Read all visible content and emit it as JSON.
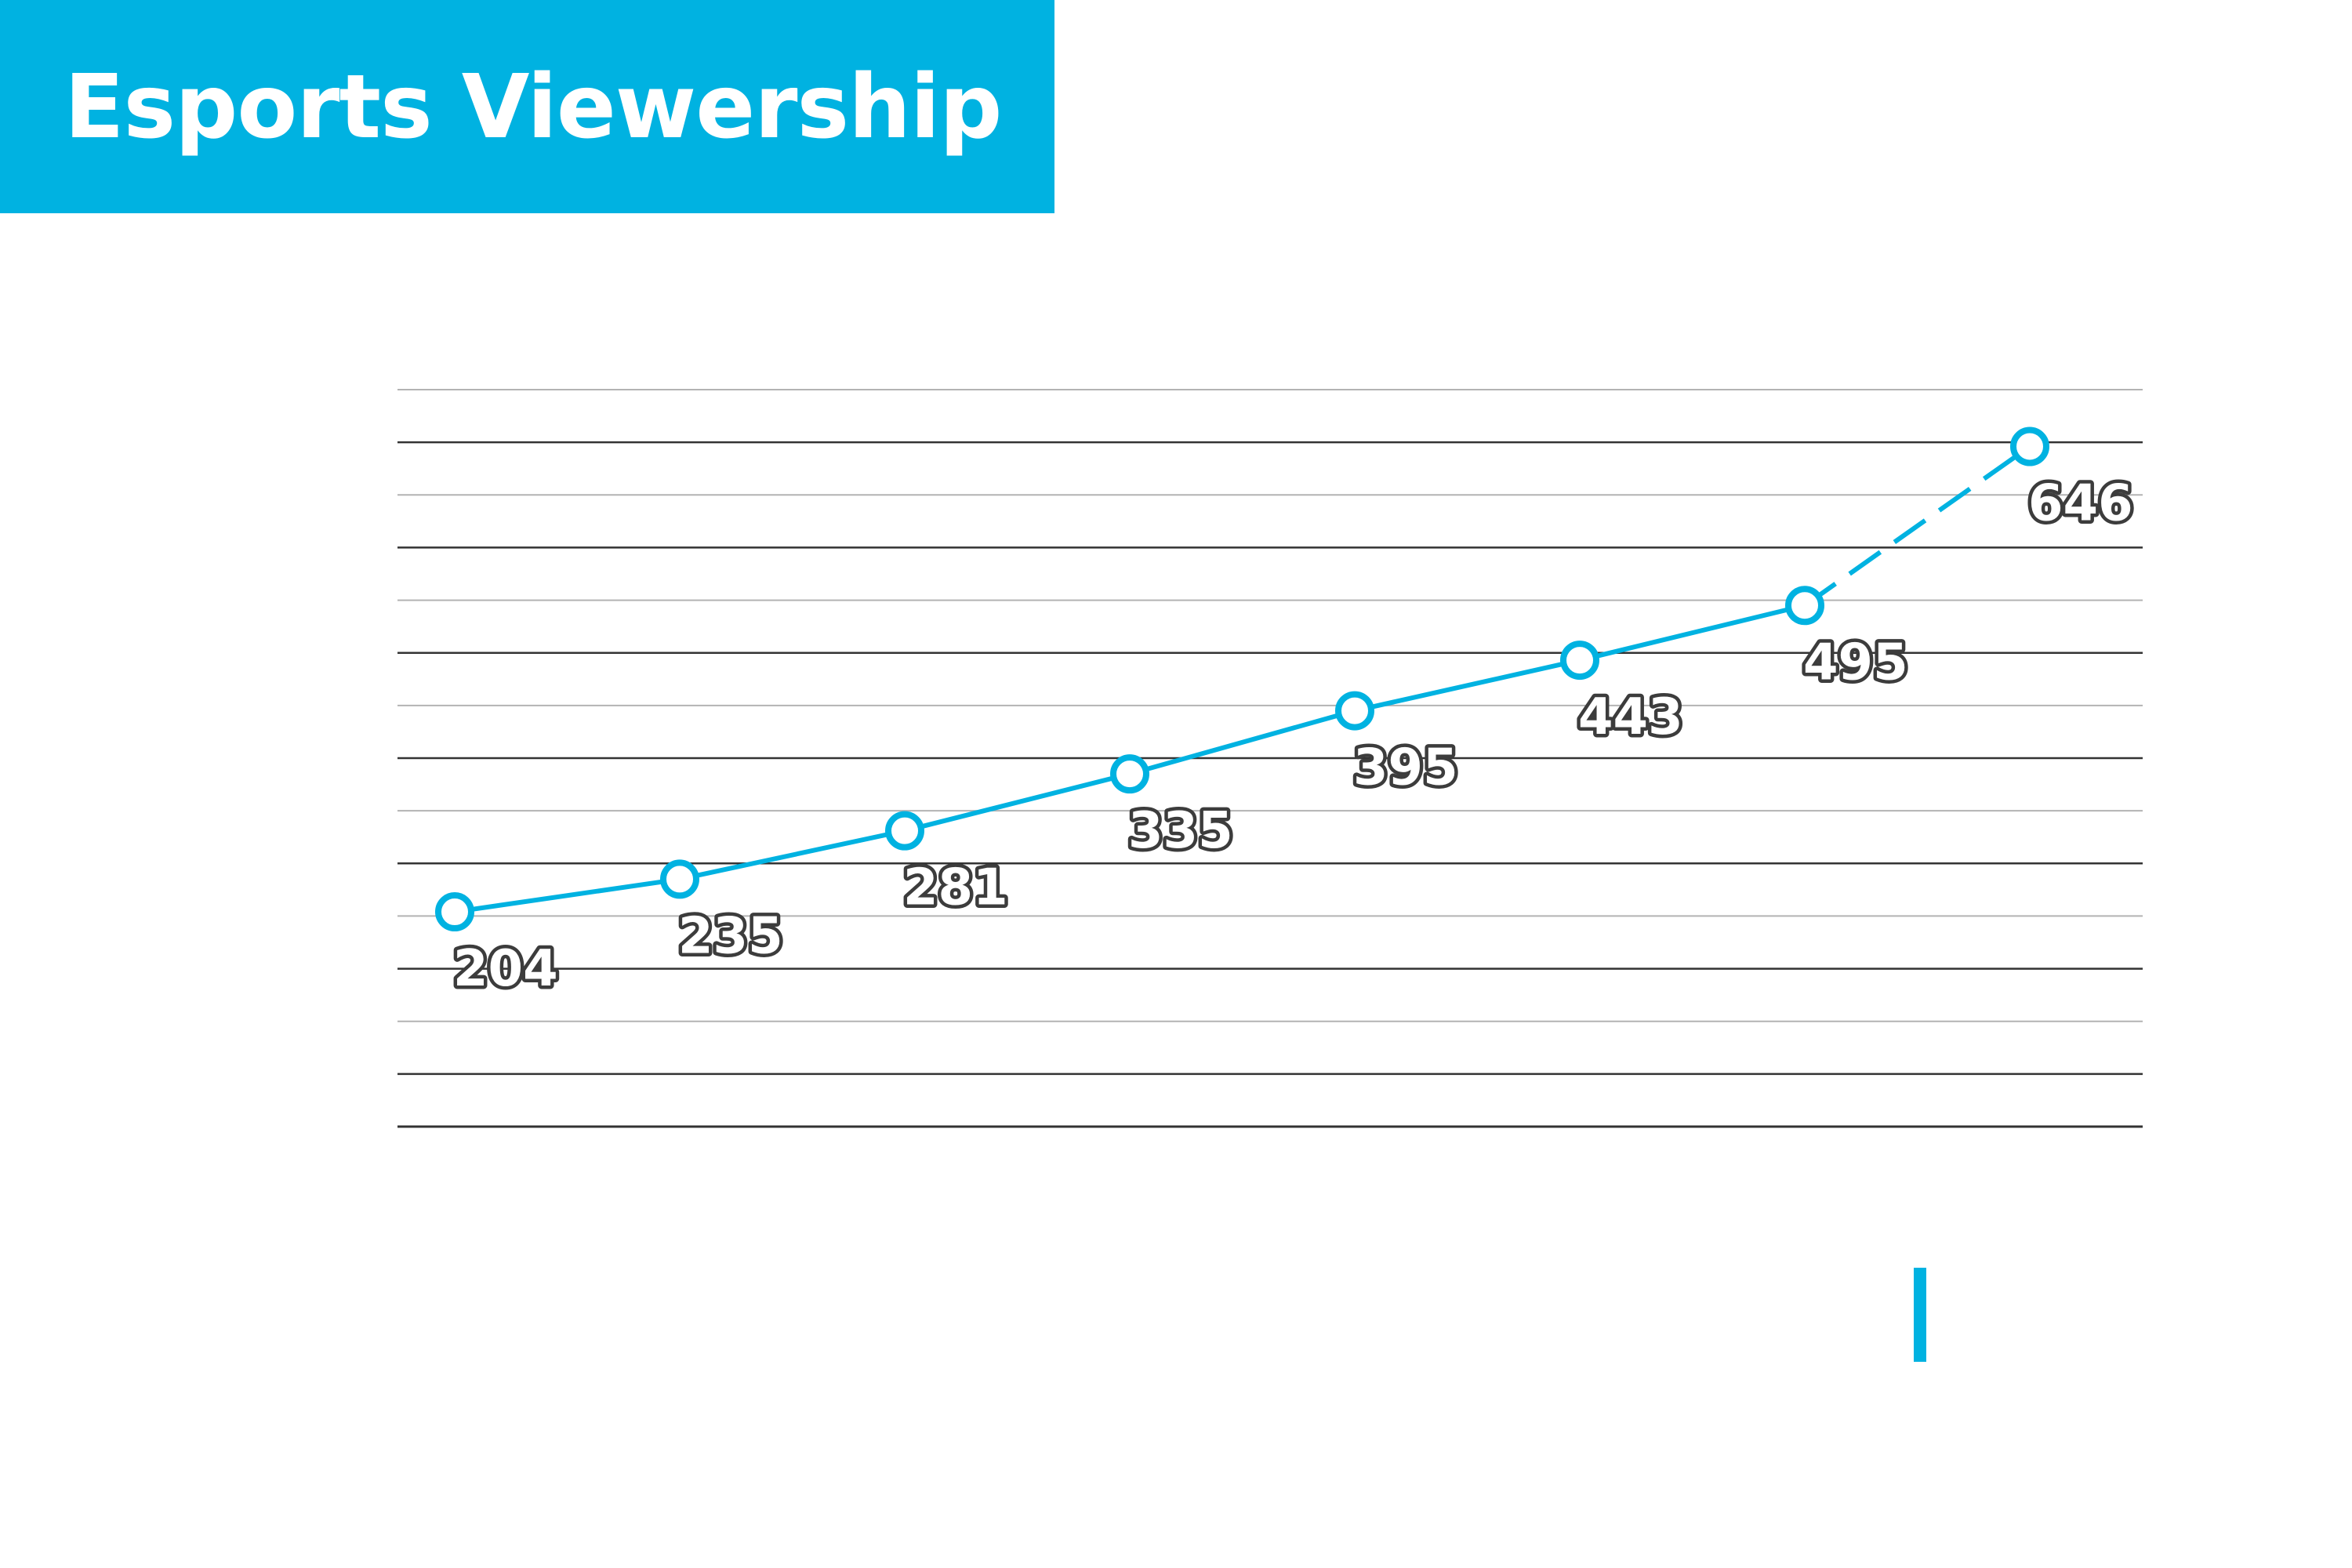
{
  "title": "Esports Viewership",
  "colors": {
    "accent": "#00b2e1",
    "title_text": "#ffffff",
    "grid_major": "#333333",
    "grid_minor": "#b3b3b3",
    "label_fill": "#ffffff",
    "label_outline": "#3c3c3c"
  },
  "chart_data": {
    "type": "line",
    "title": "Esports Viewership",
    "xlabel": "",
    "ylabel": "",
    "ylim": [
      0,
      700
    ],
    "grid": true,
    "x": [
      1,
      2,
      3,
      4,
      5,
      6,
      7,
      8
    ],
    "series": [
      {
        "values": [
          204,
          235,
          281,
          335,
          395,
          443,
          495,
          646
        ],
        "data_labels": [
          "204",
          "235",
          "281",
          "335",
          "395",
          "443",
          "495",
          "646"
        ],
        "line_style": [
          "solid",
          "solid",
          "solid",
          "solid",
          "solid",
          "solid",
          "dashed"
        ],
        "marker": "hollow-circle"
      }
    ]
  }
}
